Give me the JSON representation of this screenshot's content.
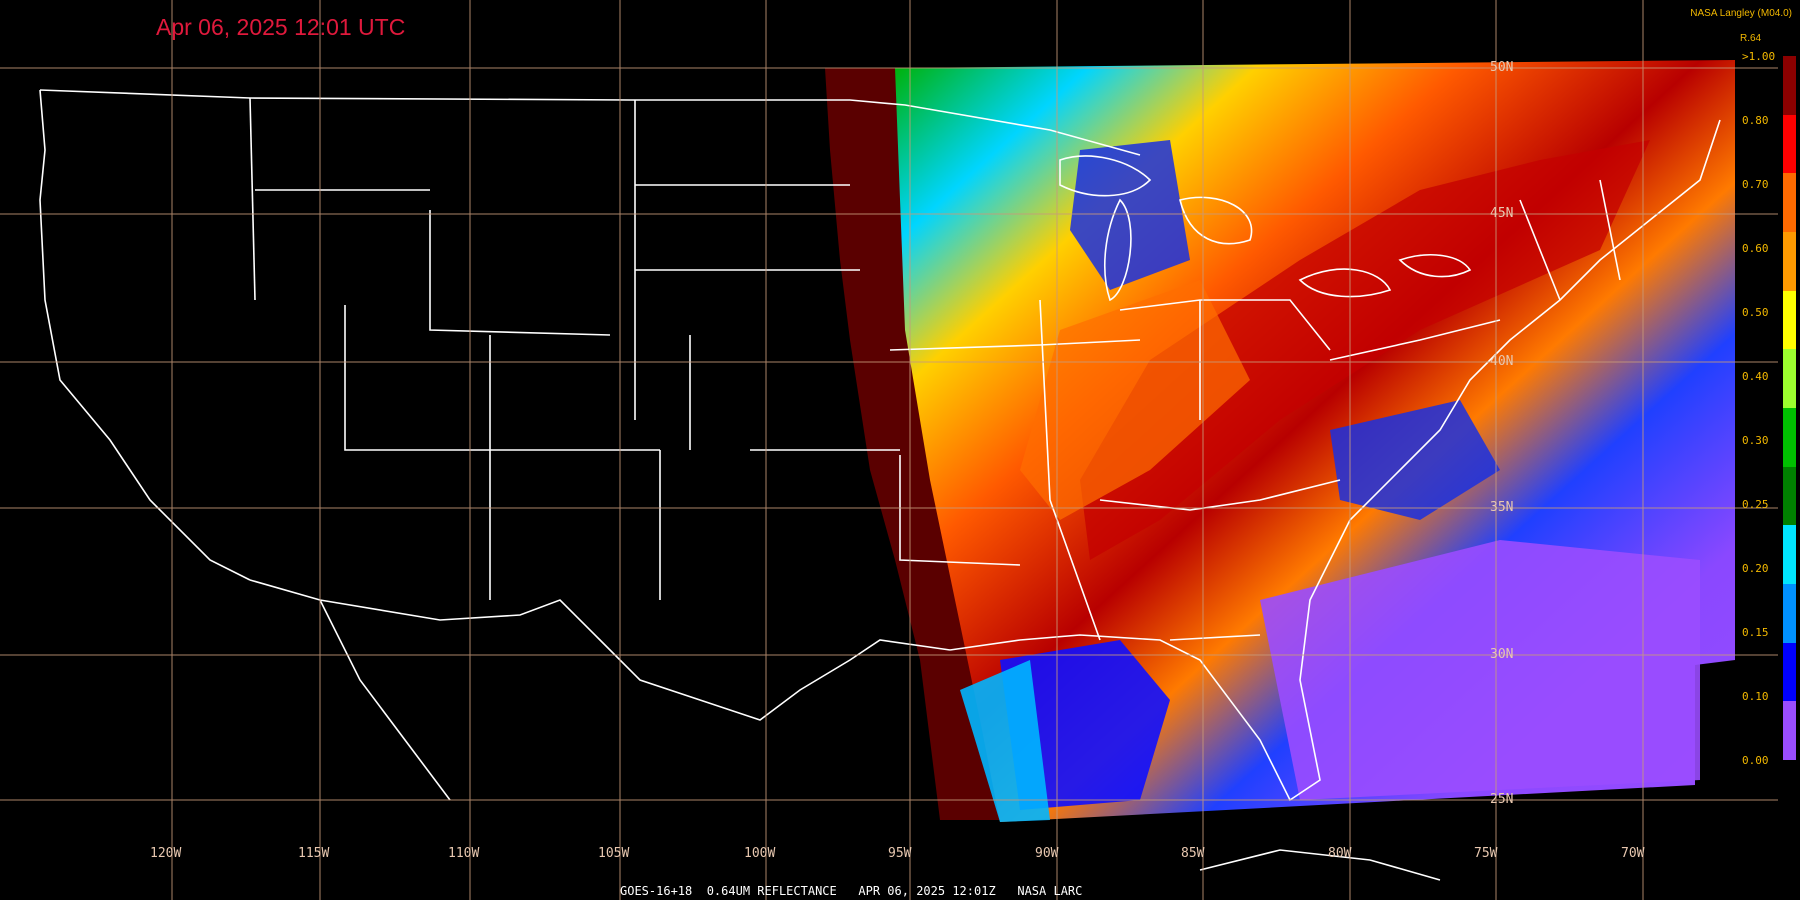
{
  "header": {
    "timestamp": "Apr 06, 2025 12:01 UTC",
    "credit": "NASA Langley (M04.0)"
  },
  "footer": {
    "caption": "GOES-16+18  0.64UM REFLECTANCE   APR 06, 2025 12:01Z   NASA LARC"
  },
  "legend": {
    "title": "R.64",
    "ticks": [
      ">1.00",
      "0.80",
      "0.70",
      "0.60",
      "0.50",
      "0.40",
      "0.30",
      "0.25",
      "0.20",
      "0.15",
      "0.10",
      "0.00"
    ],
    "colors": [
      "#8b0000",
      "#ff0000",
      "#ff6a00",
      "#ff9a00",
      "#ffff00",
      "#9cff2e",
      "#00c000",
      "#008000",
      "#00e5ff",
      "#0090ff",
      "#0000ff",
      "#9a4dff"
    ]
  },
  "axes": {
    "longitude_labels": [
      "120W",
      "115W",
      "110W",
      "105W",
      "100W",
      "95W",
      "90W",
      "85W",
      "80W",
      "75W",
      "70W"
    ],
    "latitude_labels": [
      "50N",
      "45N",
      "40N",
      "35N",
      "30N",
      "25N"
    ]
  },
  "colors": {
    "grid": "#c89a7a",
    "borders": "#ffffff",
    "nodata": "#5a0000"
  }
}
